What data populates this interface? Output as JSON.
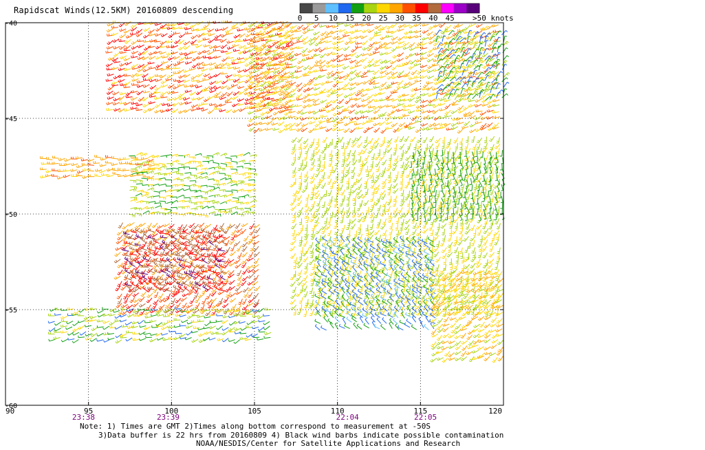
{
  "title": "Rapidscat Winds(12.5KM) 20160809 descending",
  "legend": {
    "colors": [
      "#474747",
      "#9a9a9a",
      "#5fc0ff",
      "#2068f0",
      "#12a012",
      "#a8d410",
      "#ffd700",
      "#ffa500",
      "#ff5000",
      "#ff0000",
      "#b06a3c",
      "#ff00ff",
      "#9c00c8",
      "#58007a"
    ],
    "labels": [
      "0",
      "5",
      "10",
      "15",
      "20",
      "25",
      "30",
      "35",
      "40",
      "45",
      ">50 knots"
    ]
  },
  "map": {
    "lon_ticks": [
      "90",
      "95",
      "100",
      "105",
      "110",
      "115",
      "120"
    ],
    "lat_ticks": [
      "-40",
      "-45",
      "-50",
      "-55",
      "-60"
    ],
    "time_labels": [
      {
        "lon": 94.7,
        "label": "23:38"
      },
      {
        "lon": 99.8,
        "label": "23:39"
      },
      {
        "lon": 110.6,
        "label": "22:04"
      },
      {
        "lon": 115.3,
        "label": "22:05"
      }
    ],
    "time_color": "#7a007a"
  },
  "notes": [
    "Note: 1) Times are GMT 2)Times along bottom correspond to measurement at -50S",
    "3)Data buffer is 22 hrs from 20160809 4) Black wind barbs indicate possible contamination",
    "NOAA/NESDIS/Center for Satellite Applications and Research"
  ],
  "chart_data": {
    "type": "wind-barb map",
    "title": "Rapidscat Winds(12.5KM) 20160809 descending",
    "xlabel": "",
    "ylabel": "",
    "xlim": [
      90,
      120
    ],
    "ylim": [
      -60,
      -40
    ],
    "grid": true,
    "legend_placement": "top-right",
    "color_scale_knots": [
      0,
      5,
      10,
      15,
      20,
      25,
      30,
      35,
      40,
      45,
      50
    ],
    "regions": [
      {
        "lon": [
          96.5,
          107.5
        ],
        "lat": [
          -44.5,
          -40.0
        ],
        "speed_knots": [
          25,
          45
        ],
        "dir_deg": 245
      },
      {
        "lon": [
          105.0,
          120.0
        ],
        "lat": [
          -45.5,
          -40.0
        ],
        "speed_knots": [
          22,
          38
        ],
        "dir_deg": 240
      },
      {
        "lon": [
          116.0,
          120.0
        ],
        "lat": [
          -44.0,
          -40.5
        ],
        "speed_knots": [
          10,
          22
        ],
        "dir_deg": 30
      },
      {
        "lon": [
          92.5,
          99.0
        ],
        "lat": [
          -48.0,
          -47.0
        ],
        "speed_knots": [
          28,
          36
        ],
        "dir_deg": 260
      },
      {
        "lon": [
          97.5,
          105.0
        ],
        "lat": [
          -50.0,
          -46.8
        ],
        "speed_knots": [
          15,
          30
        ],
        "dir_deg": 80
      },
      {
        "lon": [
          97.0,
          105.5
        ],
        "lat": [
          -55.0,
          -50.5
        ],
        "speed_knots": [
          30,
          48
        ],
        "dir_deg": 220
      },
      {
        "lon": [
          97.5,
          103.5
        ],
        "lat": [
          -54.0,
          -51.0
        ],
        "speed_knots": [
          42,
          52
        ],
        "dir_deg": 290
      },
      {
        "lon": [
          93.0,
          106.0
        ],
        "lat": [
          -56.5,
          -55.0
        ],
        "speed_knots": [
          12,
          28
        ],
        "dir_deg": 250
      },
      {
        "lon": [
          107.5,
          120.0
        ],
        "lat": [
          -55.0,
          -46.0
        ],
        "speed_knots": [
          20,
          30
        ],
        "dir_deg": 200
      },
      {
        "lon": [
          114.5,
          120.0
        ],
        "lat": [
          -50.0,
          -46.5
        ],
        "speed_knots": [
          15,
          20
        ],
        "dir_deg": 170
      },
      {
        "lon": [
          109.0,
          116.0
        ],
        "lat": [
          -56.0,
          -51.5
        ],
        "speed_knots": [
          8,
          18
        ],
        "dir_deg": 310
      },
      {
        "lon": [
          116.0,
          120.0
        ],
        "lat": [
          -57.5,
          -53.0
        ],
        "speed_knots": [
          22,
          35
        ],
        "dir_deg": 230
      }
    ]
  }
}
